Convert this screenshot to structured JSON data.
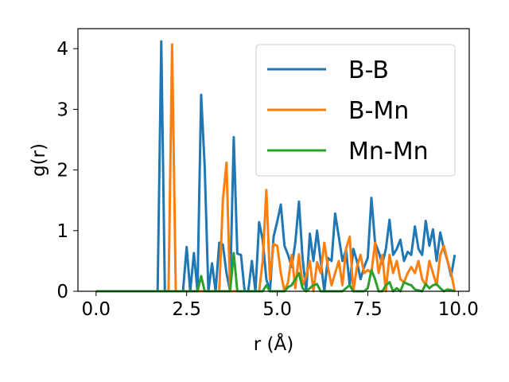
{
  "chart_data": {
    "type": "line",
    "xlabel": "r (Å)",
    "ylabel": "g(r)",
    "xlim": [
      -0.5,
      10.3
    ],
    "ylim": [
      0,
      4.33
    ],
    "xticks": [
      0.0,
      2.5,
      5.0,
      7.5,
      10.0
    ],
    "xtick_labels": [
      "0.0",
      "2.5",
      "5.0",
      "7.5",
      "10.0"
    ],
    "yticks": [
      0,
      1,
      2,
      3,
      4
    ],
    "ytick_labels": [
      "0",
      "1",
      "2",
      "3",
      "4"
    ],
    "legend_position": "top-right",
    "grid": false,
    "series": [
      {
        "name": "B-B",
        "color": "#1f77b4",
        "x": [
          0,
          1.6,
          1.7,
          1.8,
          1.9,
          2.0,
          2.4,
          2.5,
          2.6,
          2.7,
          2.8,
          2.9,
          3.0,
          3.1,
          3.2,
          3.3,
          3.4,
          3.5,
          3.6,
          3.7,
          3.8,
          3.9,
          4.0,
          4.1,
          4.2,
          4.3,
          4.4,
          4.5,
          4.6,
          4.7,
          4.8,
          4.9,
          5.0,
          5.1,
          5.2,
          5.3,
          5.4,
          5.5,
          5.6,
          5.7,
          5.8,
          5.9,
          6.0,
          6.1,
          6.2,
          6.3,
          6.4,
          6.5,
          6.6,
          6.7,
          6.8,
          6.9,
          7.0,
          7.1,
          7.2,
          7.3,
          7.4,
          7.5,
          7.6,
          7.7,
          7.8,
          7.9,
          8.0,
          8.1,
          8.2,
          8.3,
          8.4,
          8.5,
          8.6,
          8.7,
          8.8,
          8.9,
          9.0,
          9.1,
          9.2,
          9.3,
          9.4,
          9.5,
          9.6,
          9.7,
          9.8,
          9.9
        ],
        "y": [
          0,
          0,
          0,
          4.12,
          0,
          0,
          0,
          0.73,
          0,
          0.63,
          0,
          3.24,
          2.05,
          0,
          0.46,
          0,
          0.8,
          0.77,
          0.3,
          0,
          2.54,
          0.62,
          0.6,
          0,
          0,
          0.5,
          0,
          1.14,
          0.85,
          0.2,
          0,
          0.9,
          1.15,
          1.43,
          0.75,
          0.6,
          0.4,
          0.8,
          1.48,
          0.55,
          0,
          0.95,
          0.5,
          1.0,
          0.5,
          0,
          0.55,
          0.5,
          1.28,
          0.9,
          0.5,
          0.68,
          0.1,
          0.7,
          0.5,
          0.2,
          0.4,
          0.55,
          1.54,
          0.8,
          0.65,
          0.45,
          0.7,
          1.18,
          0.6,
          0.7,
          0.85,
          0.5,
          0.65,
          0.6,
          1.07,
          0.7,
          0.6,
          1.16,
          0.75,
          1.02,
          0.5,
          0.97,
          0.7,
          0.5,
          0.25,
          0.6
        ]
      },
      {
        "name": "B-Mn",
        "color": "#ff7f0e",
        "x": [
          0,
          2.0,
          2.1,
          2.2,
          3.4,
          3.5,
          3.6,
          3.7,
          4.5,
          4.6,
          4.7,
          4.8,
          4.9,
          5.0,
          5.1,
          5.2,
          5.3,
          5.4,
          5.5,
          5.6,
          5.7,
          5.8,
          5.9,
          6.0,
          6.1,
          6.2,
          6.3,
          6.4,
          6.5,
          6.6,
          6.7,
          6.8,
          6.9,
          7.0,
          7.1,
          7.2,
          7.3,
          7.4,
          7.5,
          7.6,
          7.7,
          7.8,
          7.9,
          8.0,
          8.1,
          8.2,
          8.3,
          8.4,
          8.5,
          8.6,
          8.7,
          8.8,
          8.9,
          9.0,
          9.1,
          9.2,
          9.3,
          9.4,
          9.5,
          9.6,
          9.7,
          9.8,
          9.9
        ],
        "y": [
          0,
          0,
          4.07,
          0,
          0,
          1.5,
          2.12,
          0,
          0,
          0.5,
          1.67,
          0.2,
          0.78,
          0.75,
          0.3,
          0,
          0.15,
          0.6,
          0.05,
          0.61,
          0.1,
          0.25,
          0.5,
          0,
          0.48,
          0.3,
          0.8,
          0.4,
          0.1,
          0.3,
          0.5,
          0.1,
          0.7,
          0.9,
          0,
          0.4,
          0.6,
          0.3,
          0.35,
          0.3,
          0.8,
          0.3,
          0.6,
          0,
          0.6,
          0.3,
          0.5,
          0.2,
          0.15,
          0.3,
          0.4,
          0.3,
          0.5,
          0.2,
          0.1,
          0.5,
          0.3,
          0.1,
          0.6,
          0.75,
          0.5,
          0.3,
          0
        ]
      },
      {
        "name": "Mn-Mn",
        "color": "#2ca02c",
        "x": [
          0,
          2.8,
          2.9,
          3.0,
          3.7,
          3.8,
          3.9,
          4.6,
          4.7,
          4.8,
          5.2,
          5.3,
          5.4,
          5.5,
          5.6,
          5.7,
          5.8,
          5.9,
          6.0,
          6.1,
          6.2,
          6.8,
          6.9,
          7.0,
          7.1,
          7.4,
          7.5,
          7.6,
          7.7,
          7.8,
          7.9,
          8.0,
          8.1,
          8.2,
          8.3,
          8.4,
          8.5,
          8.6,
          8.7,
          8.8,
          9.0,
          9.1,
          9.2,
          9.3,
          9.4,
          9.5,
          9.6,
          9.7,
          9.8,
          9.9
        ],
        "y": [
          0,
          0,
          0.25,
          0,
          0,
          0.63,
          0,
          0,
          0.1,
          0,
          0,
          0.07,
          0.1,
          0.2,
          0.3,
          0.05,
          0,
          0.05,
          0.1,
          0.12,
          0,
          0,
          0.05,
          0.1,
          0,
          0,
          0.05,
          0.35,
          0.2,
          0,
          0,
          0.1,
          0.15,
          0,
          0.05,
          0,
          0.15,
          0.12,
          0.1,
          0.03,
          0,
          0.12,
          0.05,
          0.1,
          0.12,
          0.05,
          0,
          0.03,
          0.02,
          0
        ]
      }
    ]
  }
}
